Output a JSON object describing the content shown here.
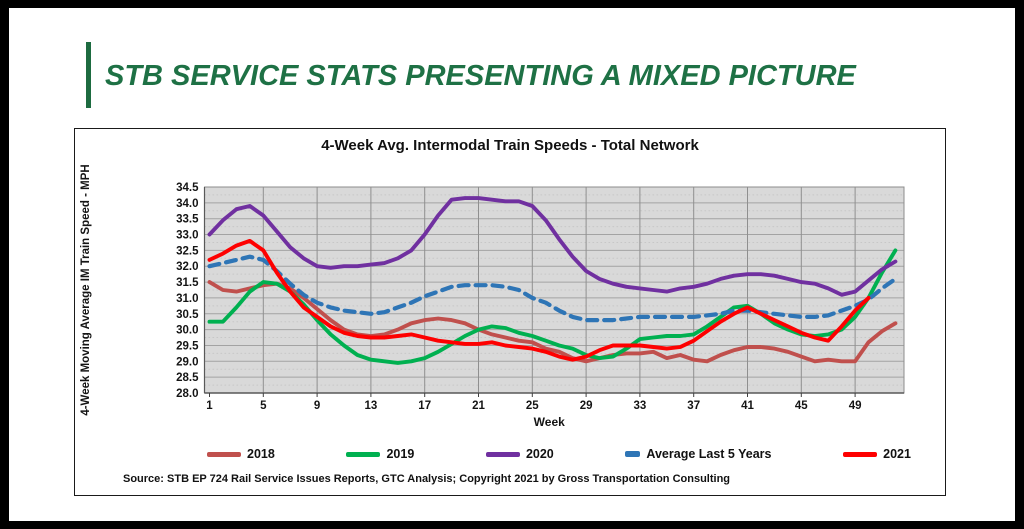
{
  "slide": {
    "title": "STB SERVICE STATS PRESENTING A MIXED PICTURE"
  },
  "chart": {
    "title": "4-Week Avg. Intermodal Train Speeds - Total Network",
    "source": "Source: STB EP 724 Rail Service Issues Reports, GTC Analysis; Copyright 2021 by Gross Transportation Consulting"
  },
  "chart_data": {
    "type": "line",
    "title": "4-Week Avg. Intermodal Train Speeds - Total Network",
    "xlabel": "Week",
    "ylabel": "4-Week Moving Average IM Train Speed - MPH",
    "ylim": [
      28.0,
      34.5
    ],
    "y_tick_step": 0.5,
    "x_ticks": [
      1,
      5,
      9,
      13,
      17,
      21,
      25,
      29,
      33,
      37,
      41,
      45,
      49
    ],
    "x_range": [
      1,
      52
    ],
    "grid": "major-and-minor, gray plot background",
    "legend_position": "bottom",
    "plot_bg_color": "#d9d9d9",
    "series": [
      {
        "name": "2018",
        "color": "#C0504D",
        "style": "solid",
        "values": [
          31.5,
          31.25,
          31.2,
          31.3,
          31.4,
          31.45,
          31.3,
          31.0,
          30.65,
          30.3,
          30.0,
          29.85,
          29.8,
          29.85,
          30.0,
          30.2,
          30.3,
          30.35,
          30.3,
          30.2,
          30.0,
          29.85,
          29.75,
          29.65,
          29.6,
          29.4,
          29.3,
          29.1,
          29.0,
          29.1,
          29.2,
          29.25,
          29.25,
          29.3,
          29.1,
          29.2,
          29.05,
          29.0,
          29.2,
          29.35,
          29.45,
          29.45,
          29.4,
          29.3,
          29.15,
          29.0,
          29.05,
          29.0,
          29.0,
          29.6,
          29.95,
          30.2
        ]
      },
      {
        "name": "2019",
        "color": "#00B050",
        "style": "solid",
        "values": [
          30.25,
          30.25,
          30.7,
          31.2,
          31.5,
          31.45,
          31.2,
          30.8,
          30.3,
          29.85,
          29.5,
          29.2,
          29.05,
          29.0,
          28.95,
          29.0,
          29.1,
          29.3,
          29.55,
          29.8,
          30.0,
          30.1,
          30.05,
          29.9,
          29.8,
          29.65,
          29.5,
          29.4,
          29.2,
          29.1,
          29.15,
          29.4,
          29.7,
          29.75,
          29.8,
          29.8,
          29.85,
          30.1,
          30.4,
          30.7,
          30.75,
          30.5,
          30.2,
          30.0,
          29.85,
          29.8,
          29.85,
          30.0,
          30.4,
          31.0,
          31.8,
          32.5
        ]
      },
      {
        "name": "2020",
        "color": "#7030A0",
        "style": "solid",
        "values": [
          33.0,
          33.45,
          33.8,
          33.9,
          33.6,
          33.1,
          32.6,
          32.25,
          32.0,
          31.95,
          32.0,
          32.0,
          32.05,
          32.1,
          32.25,
          32.5,
          33.0,
          33.6,
          34.1,
          34.15,
          34.15,
          34.1,
          34.05,
          34.05,
          33.9,
          33.45,
          32.85,
          32.3,
          31.85,
          31.6,
          31.45,
          31.35,
          31.3,
          31.25,
          31.2,
          31.3,
          31.35,
          31.45,
          31.6,
          31.7,
          31.75,
          31.75,
          31.7,
          31.6,
          31.5,
          31.45,
          31.3,
          31.1,
          31.2,
          31.55,
          31.9,
          32.15
        ]
      },
      {
        "name": "Average Last 5 Years",
        "color": "#2E75B6",
        "style": "dashed",
        "values": [
          32.0,
          32.1,
          32.2,
          32.3,
          32.2,
          31.85,
          31.45,
          31.1,
          30.85,
          30.7,
          30.6,
          30.55,
          30.5,
          30.55,
          30.7,
          30.85,
          31.05,
          31.2,
          31.35,
          31.4,
          31.4,
          31.4,
          31.35,
          31.25,
          31.0,
          30.85,
          30.6,
          30.4,
          30.3,
          30.3,
          30.3,
          30.35,
          30.4,
          30.4,
          30.4,
          30.4,
          30.4,
          30.45,
          30.5,
          30.6,
          30.6,
          30.55,
          30.5,
          30.45,
          30.4,
          30.4,
          30.45,
          30.6,
          30.75,
          30.95,
          31.3,
          31.6
        ]
      },
      {
        "name": "2021",
        "color": "#FE0000",
        "style": "solid",
        "values": [
          32.2,
          32.4,
          32.65,
          32.8,
          32.5,
          31.8,
          31.2,
          30.7,
          30.4,
          30.1,
          29.9,
          29.8,
          29.75,
          29.75,
          29.8,
          29.85,
          29.75,
          29.65,
          29.6,
          29.55,
          29.55,
          29.6,
          29.5,
          29.45,
          29.4,
          29.3,
          29.15,
          29.05,
          29.15,
          29.35,
          29.5,
          29.5,
          29.5,
          29.45,
          29.4,
          29.45,
          29.65,
          29.95,
          30.25,
          30.5,
          30.7,
          30.5,
          30.3,
          30.1,
          29.9,
          29.75,
          29.65,
          30.1,
          30.6,
          31.0
        ]
      }
    ]
  }
}
